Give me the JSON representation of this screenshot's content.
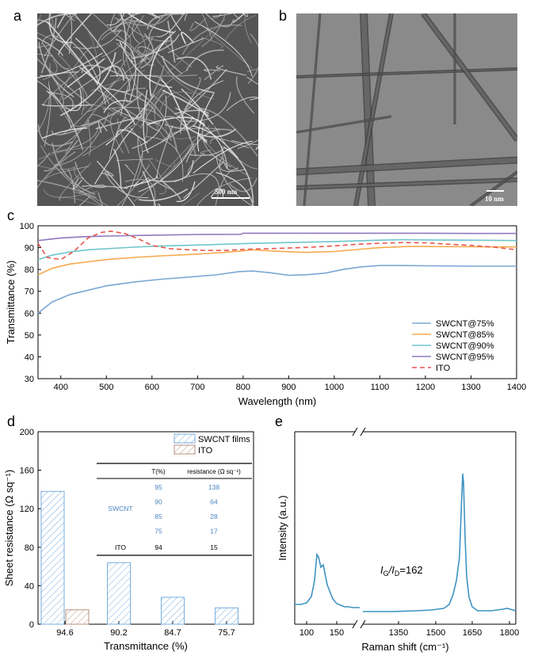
{
  "panels": {
    "a": {
      "letter": "a",
      "scale_label": "500 nm"
    },
    "b": {
      "letter": "b",
      "scale_label": "10 nm"
    },
    "c": {
      "letter": "c"
    },
    "d": {
      "letter": "d"
    },
    "e": {
      "letter": "e"
    }
  },
  "chart_data": [
    {
      "id": "c",
      "type": "line",
      "xlabel": "Wavelength (nm)",
      "ylabel": "Transmittance (%)",
      "xlim": [
        350,
        1400
      ],
      "ylim": [
        30,
        100
      ],
      "xticks": [
        400,
        500,
        600,
        700,
        800,
        900,
        1000,
        1100,
        1200,
        1300,
        1400
      ],
      "yticks": [
        30,
        40,
        50,
        60,
        70,
        80,
        90,
        100
      ],
      "legend_position": "bottom-right",
      "series": [
        {
          "name": "SWCNT@75%",
          "color": "#7ba7d4",
          "dash": false,
          "x": [
            350,
            380,
            420,
            460,
            500,
            560,
            620,
            680,
            740,
            790,
            820,
            860,
            900,
            940,
            980,
            1020,
            1060,
            1100,
            1150,
            1200,
            1300,
            1400
          ],
          "y": [
            60,
            65,
            68.5,
            70.5,
            72.5,
            74.2,
            75.5,
            76.5,
            77.5,
            79,
            79.3,
            78.5,
            77.3,
            77.6,
            78.3,
            80,
            81.2,
            81.8,
            81.8,
            81.7,
            81.5,
            81.5
          ]
        },
        {
          "name": "SWCNT@85%",
          "color": "#f5a94e",
          "dash": false,
          "x": [
            350,
            380,
            420,
            460,
            500,
            560,
            620,
            700,
            760,
            800,
            820,
            880,
            940,
            1000,
            1060,
            1100,
            1160,
            1200,
            1300,
            1400
          ],
          "y": [
            77.5,
            80.5,
            82.5,
            83.5,
            84.5,
            85.5,
            86.2,
            87,
            87.8,
            88.5,
            89,
            88.3,
            87.8,
            88.2,
            89.3,
            90,
            90.5,
            90.5,
            90.4,
            90.3
          ]
        },
        {
          "name": "SWCNT@90%",
          "color": "#6fc6cc",
          "dash": false,
          "x": [
            350,
            380,
            420,
            460,
            500,
            560,
            620,
            700,
            800,
            900,
            1000,
            1100,
            1150,
            1200,
            1300,
            1400
          ],
          "y": [
            84.5,
            86.5,
            88,
            89,
            89.5,
            90.2,
            90.7,
            91.2,
            91.8,
            92.3,
            92.8,
            93.4,
            93.6,
            93.5,
            93.4,
            93.2
          ]
        },
        {
          "name": "SWCNT@95%",
          "color": "#9079c0",
          "dash": false,
          "x": [
            350,
            400,
            450,
            500,
            600,
            700,
            795,
            800,
            900,
            1000,
            1100,
            1200,
            1300,
            1400
          ],
          "y": [
            93.2,
            94.4,
            95,
            95.3,
            95.7,
            96,
            96.1,
            96.6,
            96.6,
            96.6,
            96.6,
            96.6,
            96.5,
            96.5
          ]
        },
        {
          "name": "ITO",
          "color": "#e8554e",
          "dash": true,
          "x": [
            350,
            370,
            400,
            430,
            460,
            490,
            510,
            540,
            570,
            600,
            640,
            680,
            720,
            760,
            800,
            850,
            900,
            950,
            1000,
            1050,
            1100,
            1150,
            1200,
            1250,
            1300,
            1350,
            1400
          ],
          "y": [
            92,
            85.5,
            84.5,
            88.5,
            94.5,
            97,
            97.5,
            96.5,
            94,
            91,
            89.5,
            89,
            88.7,
            88.7,
            89.2,
            89.5,
            89.8,
            90.2,
            90.8,
            91.5,
            92,
            92.3,
            92.2,
            91.6,
            91,
            90.2,
            89
          ]
        }
      ]
    },
    {
      "id": "d",
      "type": "bar",
      "xlabel": "Transmittance (%)",
      "ylabel": "Sheet resistance (Ω sq⁻¹)",
      "ylim": [
        0,
        200
      ],
      "yticks": [
        0,
        40,
        80,
        120,
        160,
        200
      ],
      "categories": [
        "94.6",
        "90.2",
        "84.7",
        "75.7"
      ],
      "legend_position": "top-right",
      "series": [
        {
          "name": "SWCNT films",
          "color": "#5b9bd5",
          "values": [
            138,
            64,
            28,
            17
          ]
        },
        {
          "name": "ITO",
          "color": "#b07b6a",
          "values": [
            15,
            null,
            null,
            null
          ]
        }
      ],
      "table": {
        "headers": [
          "T(%)",
          "resistance (Ω sq⁻¹)"
        ],
        "group_label": "SWCNT",
        "rows": [
          {
            "t": "95",
            "r": "138"
          },
          {
            "t": "90",
            "r": "64"
          },
          {
            "t": "85",
            "r": "28"
          },
          {
            "t": "75",
            "r": "17"
          }
        ],
        "ito_row": {
          "label": "ITO",
          "t": "94",
          "r": "15"
        }
      }
    },
    {
      "id": "e",
      "type": "line",
      "xlabel": "Raman shift (cm⁻¹)",
      "ylabel": "Intensity (a.u.)",
      "annotation": "I_G/I_D=162",
      "annotation_main": "I",
      "annotation_sub1": "G",
      "annotation_mid": "/I",
      "annotation_sub2": "D",
      "annotation_tail": "=162",
      "xticks_left": [
        "100",
        "150"
      ],
      "xticks_right": [
        "1350",
        "1500",
        "1650",
        "1800"
      ],
      "break_axis": true,
      "color": "#3f93c2"
    }
  ]
}
